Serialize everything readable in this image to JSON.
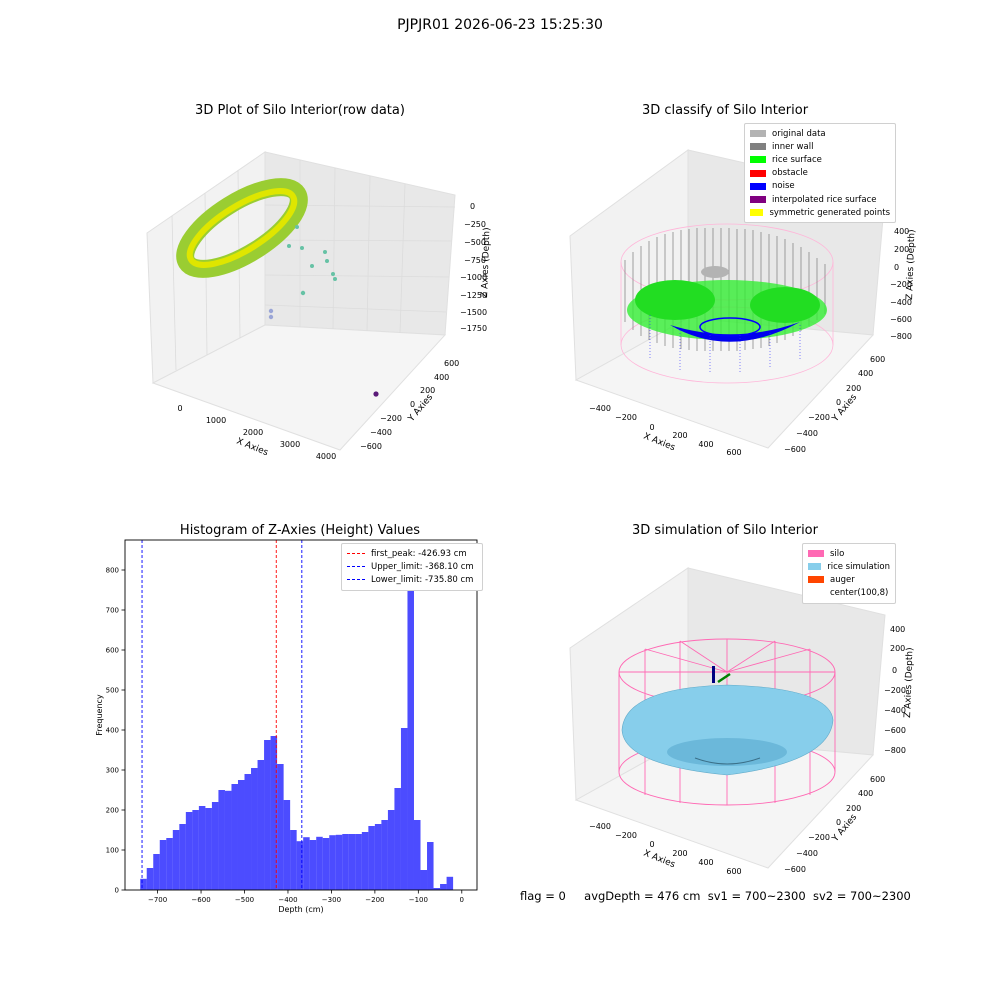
{
  "suptitle": "PJPJR01 2026-06-23 15:25:30",
  "panels": {
    "raw": {
      "title": "3D Plot of Silo Interior(row data)",
      "xlabel": "X Axies",
      "ylabel": "Y Axies",
      "zlabel": "Z Axies (Depth)",
      "xticks": [
        "0",
        "1000",
        "2000",
        "3000",
        "4000"
      ],
      "yticks": [
        "600",
        "400",
        "200",
        "0",
        "−200",
        "−400",
        "−600"
      ],
      "zticks": [
        "0",
        "−250",
        "−500",
        "−750",
        "−1000",
        "−1250",
        "−1500",
        "−1750"
      ]
    },
    "classify": {
      "title": "3D classify of Silo Interior",
      "xlabel": "X Axies",
      "ylabel": "Y Axies",
      "zlabel": "Z Axies (Depth)",
      "xticks": [
        "−400",
        "−200",
        "0",
        "200",
        "400",
        "600"
      ],
      "yticks": [
        "600",
        "400",
        "200",
        "0",
        "−200",
        "−400",
        "−600"
      ],
      "zticks": [
        "400",
        "200",
        "0",
        "−200",
        "−400",
        "−600",
        "−800"
      ],
      "legend": [
        {
          "label": "original data",
          "color": "#b3b3b3"
        },
        {
          "label": "inner wall",
          "color": "#808080"
        },
        {
          "label": "rice surface",
          "color": "#00ff00"
        },
        {
          "label": "obstacle",
          "color": "#ff0000"
        },
        {
          "label": "noise",
          "color": "#0000ff"
        },
        {
          "label": "interpolated rice surface",
          "color": "#800080"
        },
        {
          "label": "symmetric generated points",
          "color": "#ffff00"
        }
      ]
    },
    "histogram": {
      "title": "Histogram of Z-Axies (Height) Values",
      "legend": [
        {
          "label": "first_peak: -426.93 cm",
          "color": "#ff0000"
        },
        {
          "label": "Upper_limit: -368.10 cm",
          "color": "#0000ff"
        },
        {
          "label": "Lower_limit: -735.80 cm",
          "color": "#0000ff"
        }
      ]
    },
    "simulation": {
      "title": "3D simulation of Silo Interior",
      "xlabel": "X Axies",
      "ylabel": "Y Axies",
      "zlabel": "Z Axies (Depth)",
      "xticks": [
        "−400",
        "−200",
        "0",
        "200",
        "400",
        "600"
      ],
      "yticks": [
        "600",
        "400",
        "200",
        "0",
        "−200",
        "−400",
        "−600"
      ],
      "zticks": [
        "400",
        "200",
        "0",
        "−200",
        "−400",
        "−600",
        "−800"
      ],
      "legend": [
        {
          "label": "silo",
          "color": "#ff69b4"
        },
        {
          "label": "rice simulation",
          "color": "#87ceeb"
        },
        {
          "label": "auger",
          "color": "#ff4500"
        },
        {
          "label": "center(100,8)",
          "color": ""
        }
      ]
    }
  },
  "footer": {
    "flag": "flag = 0",
    "avg": "avgDepth = 476 cm",
    "sv1": "sv1 = 700~2300",
    "sv2": "sv2 = 700~2300"
  },
  "chart_data": {
    "type": "bar",
    "title": "Histogram of Z-Axies (Height) Values",
    "xlabel": "Depth (cm)",
    "ylabel": "Frequency",
    "xlim": [
      -775,
      35
    ],
    "ylim": [
      0,
      875
    ],
    "xticks": [
      -700,
      -600,
      -500,
      -400,
      -300,
      -200,
      -100,
      0
    ],
    "yticks": [
      0,
      100,
      200,
      300,
      400,
      500,
      600,
      700,
      800
    ],
    "bin_start": -740,
    "bin_width": 15,
    "values": [
      28,
      55,
      90,
      125,
      130,
      150,
      165,
      195,
      200,
      210,
      205,
      220,
      250,
      248,
      265,
      275,
      290,
      305,
      325,
      375,
      385,
      315,
      225,
      150,
      122,
      132,
      125,
      133,
      130,
      137,
      138,
      140,
      140,
      140,
      145,
      160,
      165,
      175,
      200,
      255,
      405,
      840,
      175,
      50,
      120,
      5,
      15,
      33
    ],
    "vlines": [
      {
        "name": "first_peak",
        "x": -426.93,
        "color": "#ff0000"
      },
      {
        "name": "Upper_limit",
        "x": -368.1,
        "color": "#0000ff"
      },
      {
        "name": "Lower_limit",
        "x": -735.8,
        "color": "#0000ff"
      }
    ],
    "bar_color": "#0000ff"
  }
}
